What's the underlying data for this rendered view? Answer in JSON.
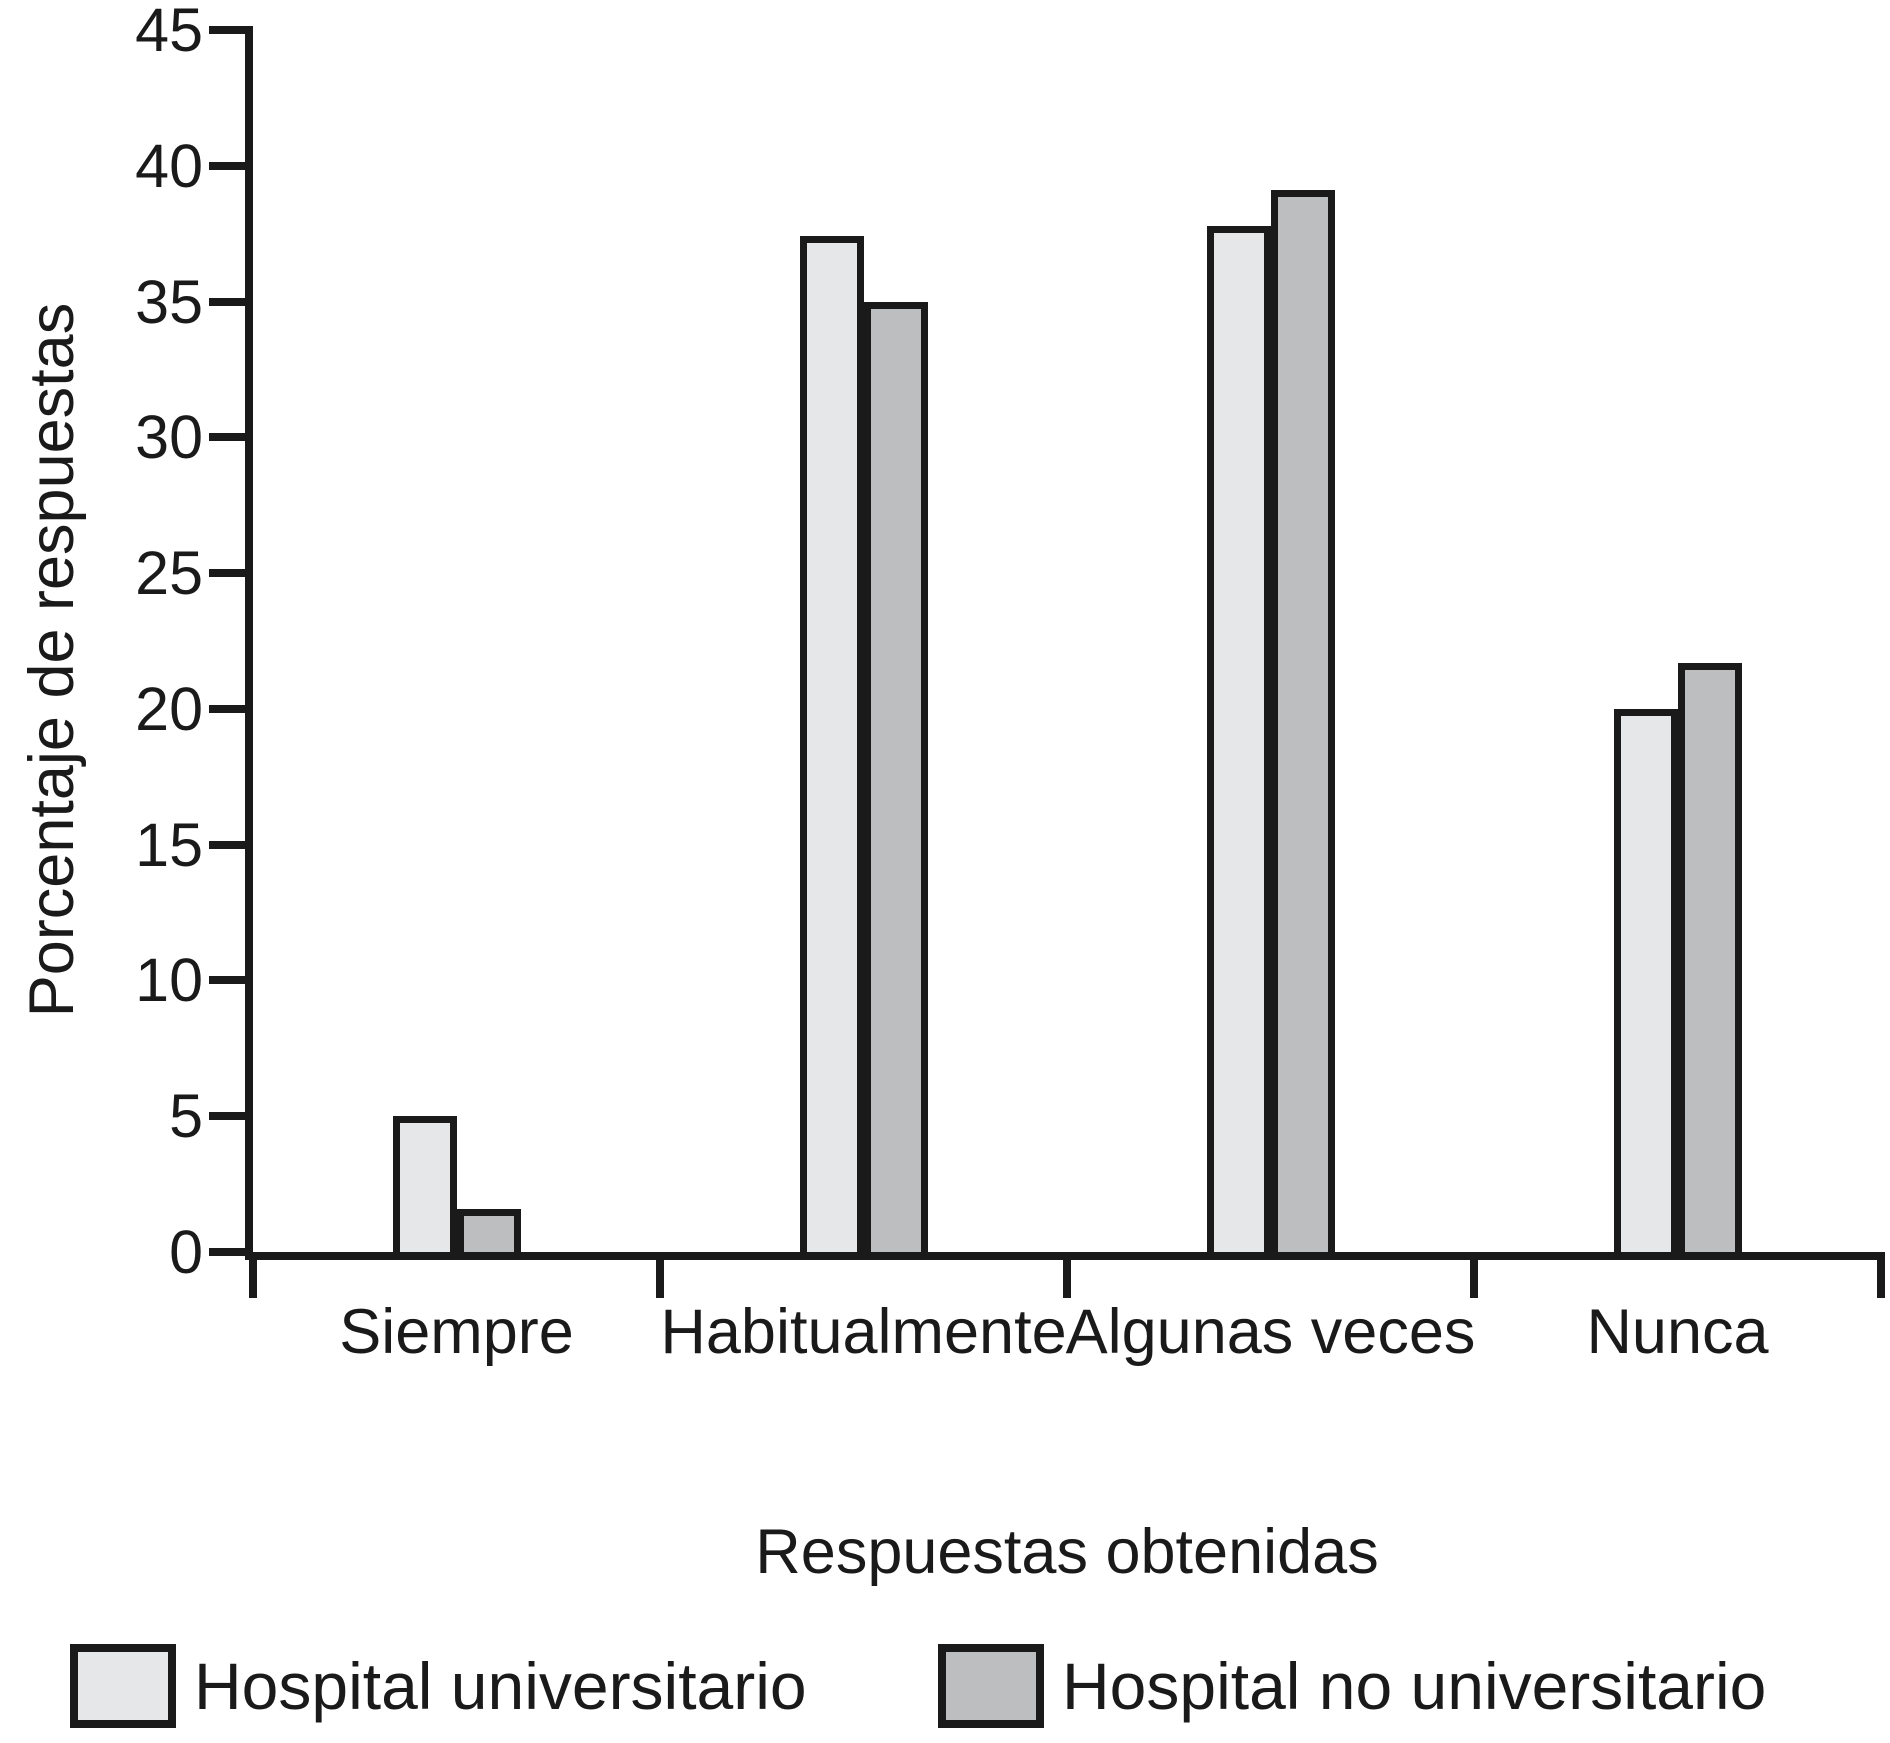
{
  "chart_data": {
    "type": "bar",
    "categories": [
      "Siempre",
      "Habitualmente",
      "Algunas veces",
      "Nunca"
    ],
    "series": [
      {
        "name": "Hospital universitario",
        "color": "#e6e7e8",
        "values": [
          5.0,
          37.4,
          37.8,
          20.0
        ]
      },
      {
        "name": "Hospital no universitario",
        "color": "#bcbec0",
        "values": [
          1.6,
          35.0,
          39.1,
          21.7
        ]
      }
    ],
    "title": "",
    "xlabel": "Respuestas obtenidas",
    "ylabel": "Porcentaje de respuestas",
    "ylim": [
      0,
      45
    ],
    "ytick_step": 5,
    "yticks": [
      45,
      40,
      35,
      30,
      25,
      20,
      15,
      10,
      5,
      0
    ],
    "grid": "off",
    "legend_position": "bottom",
    "bar_outline_color": "#1a1a1a",
    "axis_color": "#1a1a1a",
    "text_color": "#1a1a1a",
    "background_color": "#ffffff"
  }
}
